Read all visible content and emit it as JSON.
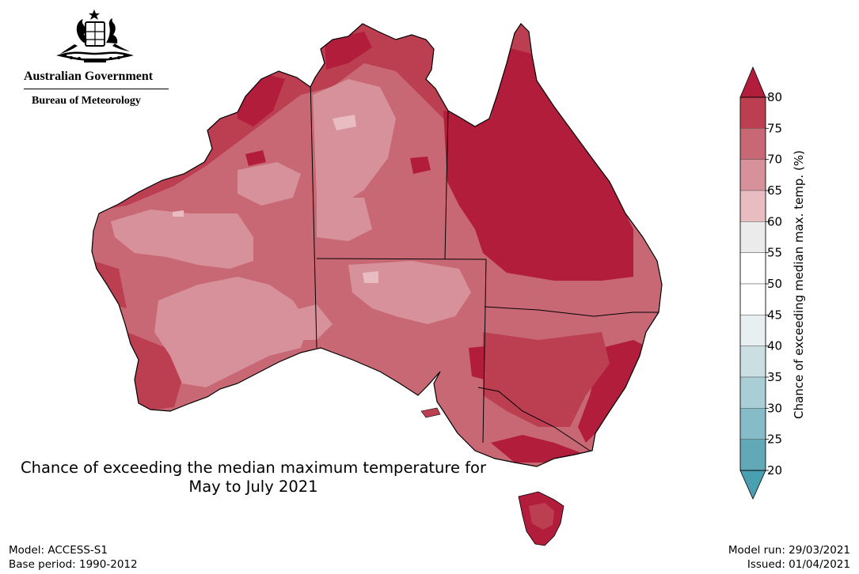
{
  "header": {
    "government": "Australian Government",
    "agency": "Bureau of Meteorology",
    "logo_icon": "commonwealth-coat-of-arms-icon"
  },
  "title": {
    "line1": "Chance of exceeding the median maximum temperature for",
    "line2": "May to July 2021"
  },
  "footer": {
    "model": "Model: ACCESS-S1",
    "base_period": "Base period: 1990-2012",
    "model_run": "Model run: 29/03/2021",
    "issued": "Issued: 01/04/2021"
  },
  "colorbar": {
    "label": "Chance of exceeding median max. temp. (%)",
    "ticks": [
      "20",
      "25",
      "30",
      "35",
      "40",
      "45",
      "50",
      "55",
      "60",
      "65",
      "70",
      "75",
      "80"
    ],
    "under_color": "#4a9fb0",
    "over_color": "#b21d3c",
    "colors": [
      "#62a9b8",
      "#86bcc7",
      "#a9ced5",
      "#cbdfe3",
      "#e8eff1",
      "#ffffff",
      "#ffffff",
      "#ebebeb",
      "#e8bcc1",
      "#d6919a",
      "#c86874",
      "#bc3f51",
      "#b21d3c"
    ]
  },
  "map": {
    "map_type": "probability shading of Australia",
    "colors": {
      "p60_65": "#e8bcc1",
      "p65_70": "#d6919a",
      "p70_75": "#c86874",
      "p75_80": "#bc3f51",
      "p80_plus": "#b21d3c",
      "border": "#000000"
    }
  }
}
